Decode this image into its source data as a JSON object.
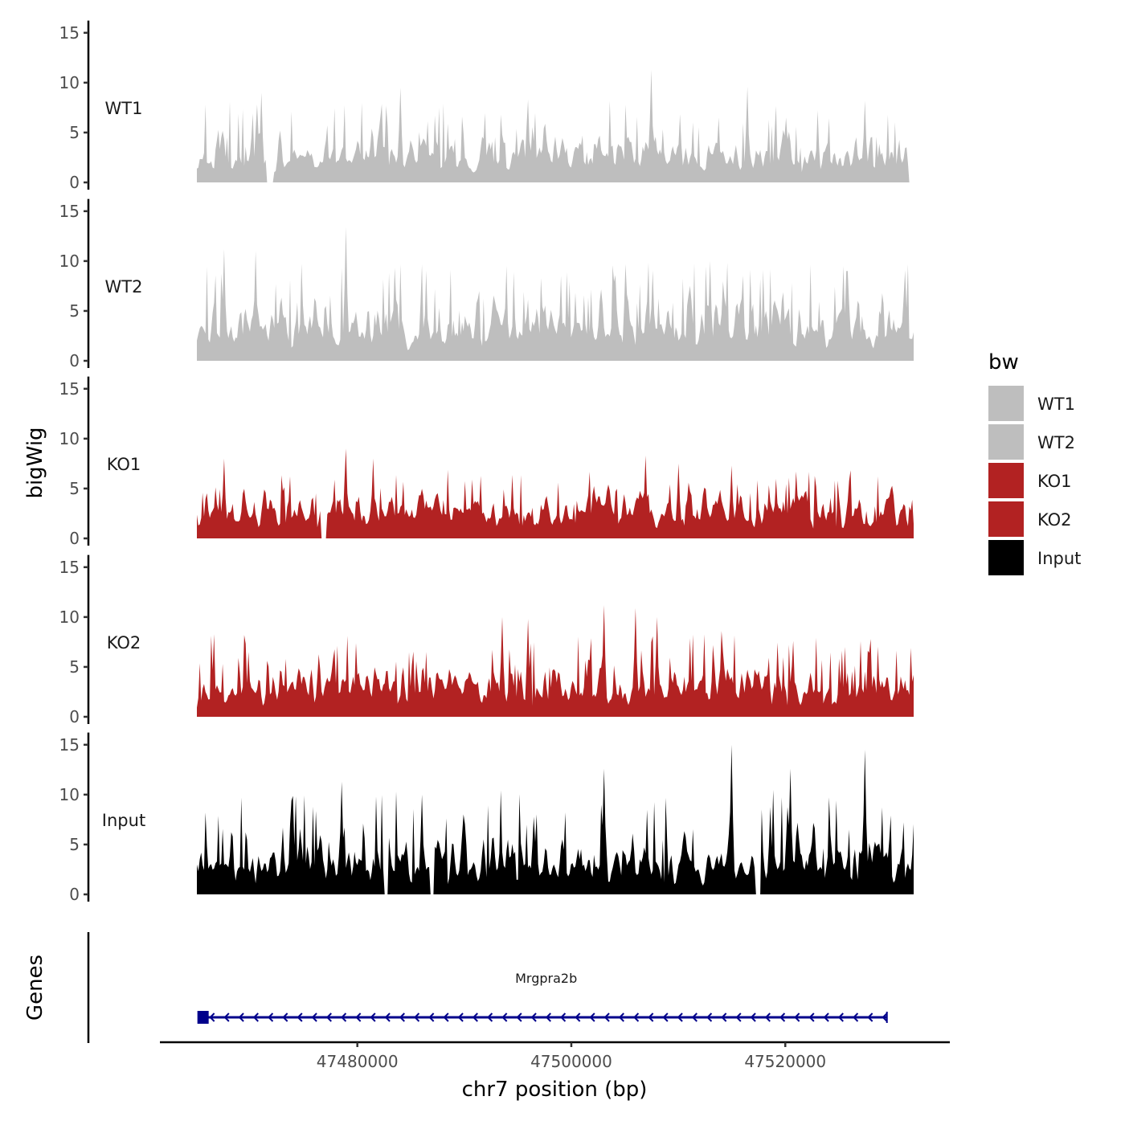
{
  "chart_data": {
    "type": "area",
    "y_axis_title": "bigWig",
    "genes_axis_title": "Genes",
    "x_axis_title": "chr7 position (bp)",
    "region": {
      "chrom": "chr7",
      "start": 47465000,
      "end": 47532000
    },
    "x_ticks": [
      47480000,
      47500000,
      47520000
    ],
    "x_tick_labels": [
      "47480000",
      "47500000",
      "47520000"
    ],
    "ylim": [
      0,
      15.5
    ],
    "y_ticks": [
      0,
      5,
      10,
      15
    ],
    "y_tick_labels": [
      "0",
      "5",
      "10",
      "15"
    ],
    "legend": {
      "title": "bw",
      "entries": [
        {
          "label": "WT1",
          "color": "#bebebe"
        },
        {
          "label": "WT2",
          "color": "#bebebe"
        },
        {
          "label": "KO1",
          "color": "#b22222"
        },
        {
          "label": "KO2",
          "color": "#b22222"
        },
        {
          "label": "Input",
          "color": "#000000"
        }
      ]
    },
    "tracks": [
      {
        "name": "WT1",
        "color": "#bebebe",
        "seed": 11,
        "base": 2.0,
        "max": 11.3,
        "peaks": [
          {
            "x": 47471000,
            "y": 9.0
          },
          {
            "x": 47484000,
            "y": 9.5
          },
          {
            "x": 47496000,
            "y": 8.3
          },
          {
            "x": 47507500,
            "y": 11.3
          },
          {
            "x": 47516500,
            "y": 9.6
          },
          {
            "x": 47527500,
            "y": 8.2
          }
        ],
        "gaps": [
          {
            "x": 47471600,
            "w": 500
          },
          {
            "x": 47531600,
            "w": 400
          }
        ]
      },
      {
        "name": "WT2",
        "color": "#bebebe",
        "seed": 23,
        "base": 2.5,
        "max": 13.4,
        "peaks": [
          {
            "x": 47467500,
            "y": 11.2
          },
          {
            "x": 47470500,
            "y": 11.0
          },
          {
            "x": 47479000,
            "y": 13.4
          },
          {
            "x": 47505000,
            "y": 9.7
          },
          {
            "x": 47513000,
            "y": 10.0
          },
          {
            "x": 47525500,
            "y": 9.5
          }
        ],
        "gaps": []
      },
      {
        "name": "KO1",
        "color": "#b22222",
        "seed": 37,
        "base": 2.0,
        "max": 9.0,
        "peaks": [
          {
            "x": 47467500,
            "y": 8.0
          },
          {
            "x": 47479000,
            "y": 9.0
          },
          {
            "x": 47481500,
            "y": 8.0
          },
          {
            "x": 47507000,
            "y": 8.3
          },
          {
            "x": 47510000,
            "y": 7.5
          },
          {
            "x": 47515000,
            "y": 7.3
          }
        ],
        "gaps": [
          {
            "x": 47476600,
            "w": 400
          }
        ]
      },
      {
        "name": "KO2",
        "color": "#b22222",
        "seed": 53,
        "base": 2.2,
        "max": 11.2,
        "peaks": [
          {
            "x": 47493500,
            "y": 10.0
          },
          {
            "x": 47496000,
            "y": 9.8
          },
          {
            "x": 47503000,
            "y": 11.2
          },
          {
            "x": 47506000,
            "y": 10.9
          },
          {
            "x": 47508000,
            "y": 10.0
          },
          {
            "x": 47514000,
            "y": 8.6
          }
        ],
        "gaps": []
      },
      {
        "name": "Input",
        "color": "#000000",
        "seed": 71,
        "base": 2.3,
        "max": 15.0,
        "peaks": [
          {
            "x": 47478500,
            "y": 11.3
          },
          {
            "x": 47486000,
            "y": 10.0
          },
          {
            "x": 47503000,
            "y": 12.6
          },
          {
            "x": 47515000,
            "y": 15.0
          },
          {
            "x": 47520500,
            "y": 12.6
          },
          {
            "x": 47527500,
            "y": 14.5
          }
        ],
        "gaps": [
          {
            "x": 47482500,
            "w": 300
          },
          {
            "x": 47486800,
            "w": 300
          },
          {
            "x": 47517300,
            "w": 300
          }
        ]
      }
    ],
    "genes": [
      {
        "name": "Mrgpra2b",
        "strand": "-",
        "start": 47465200,
        "end": 47529500,
        "color": "#00008b",
        "exons": [
          {
            "start": 47465200,
            "end": 47466200
          }
        ]
      }
    ]
  }
}
